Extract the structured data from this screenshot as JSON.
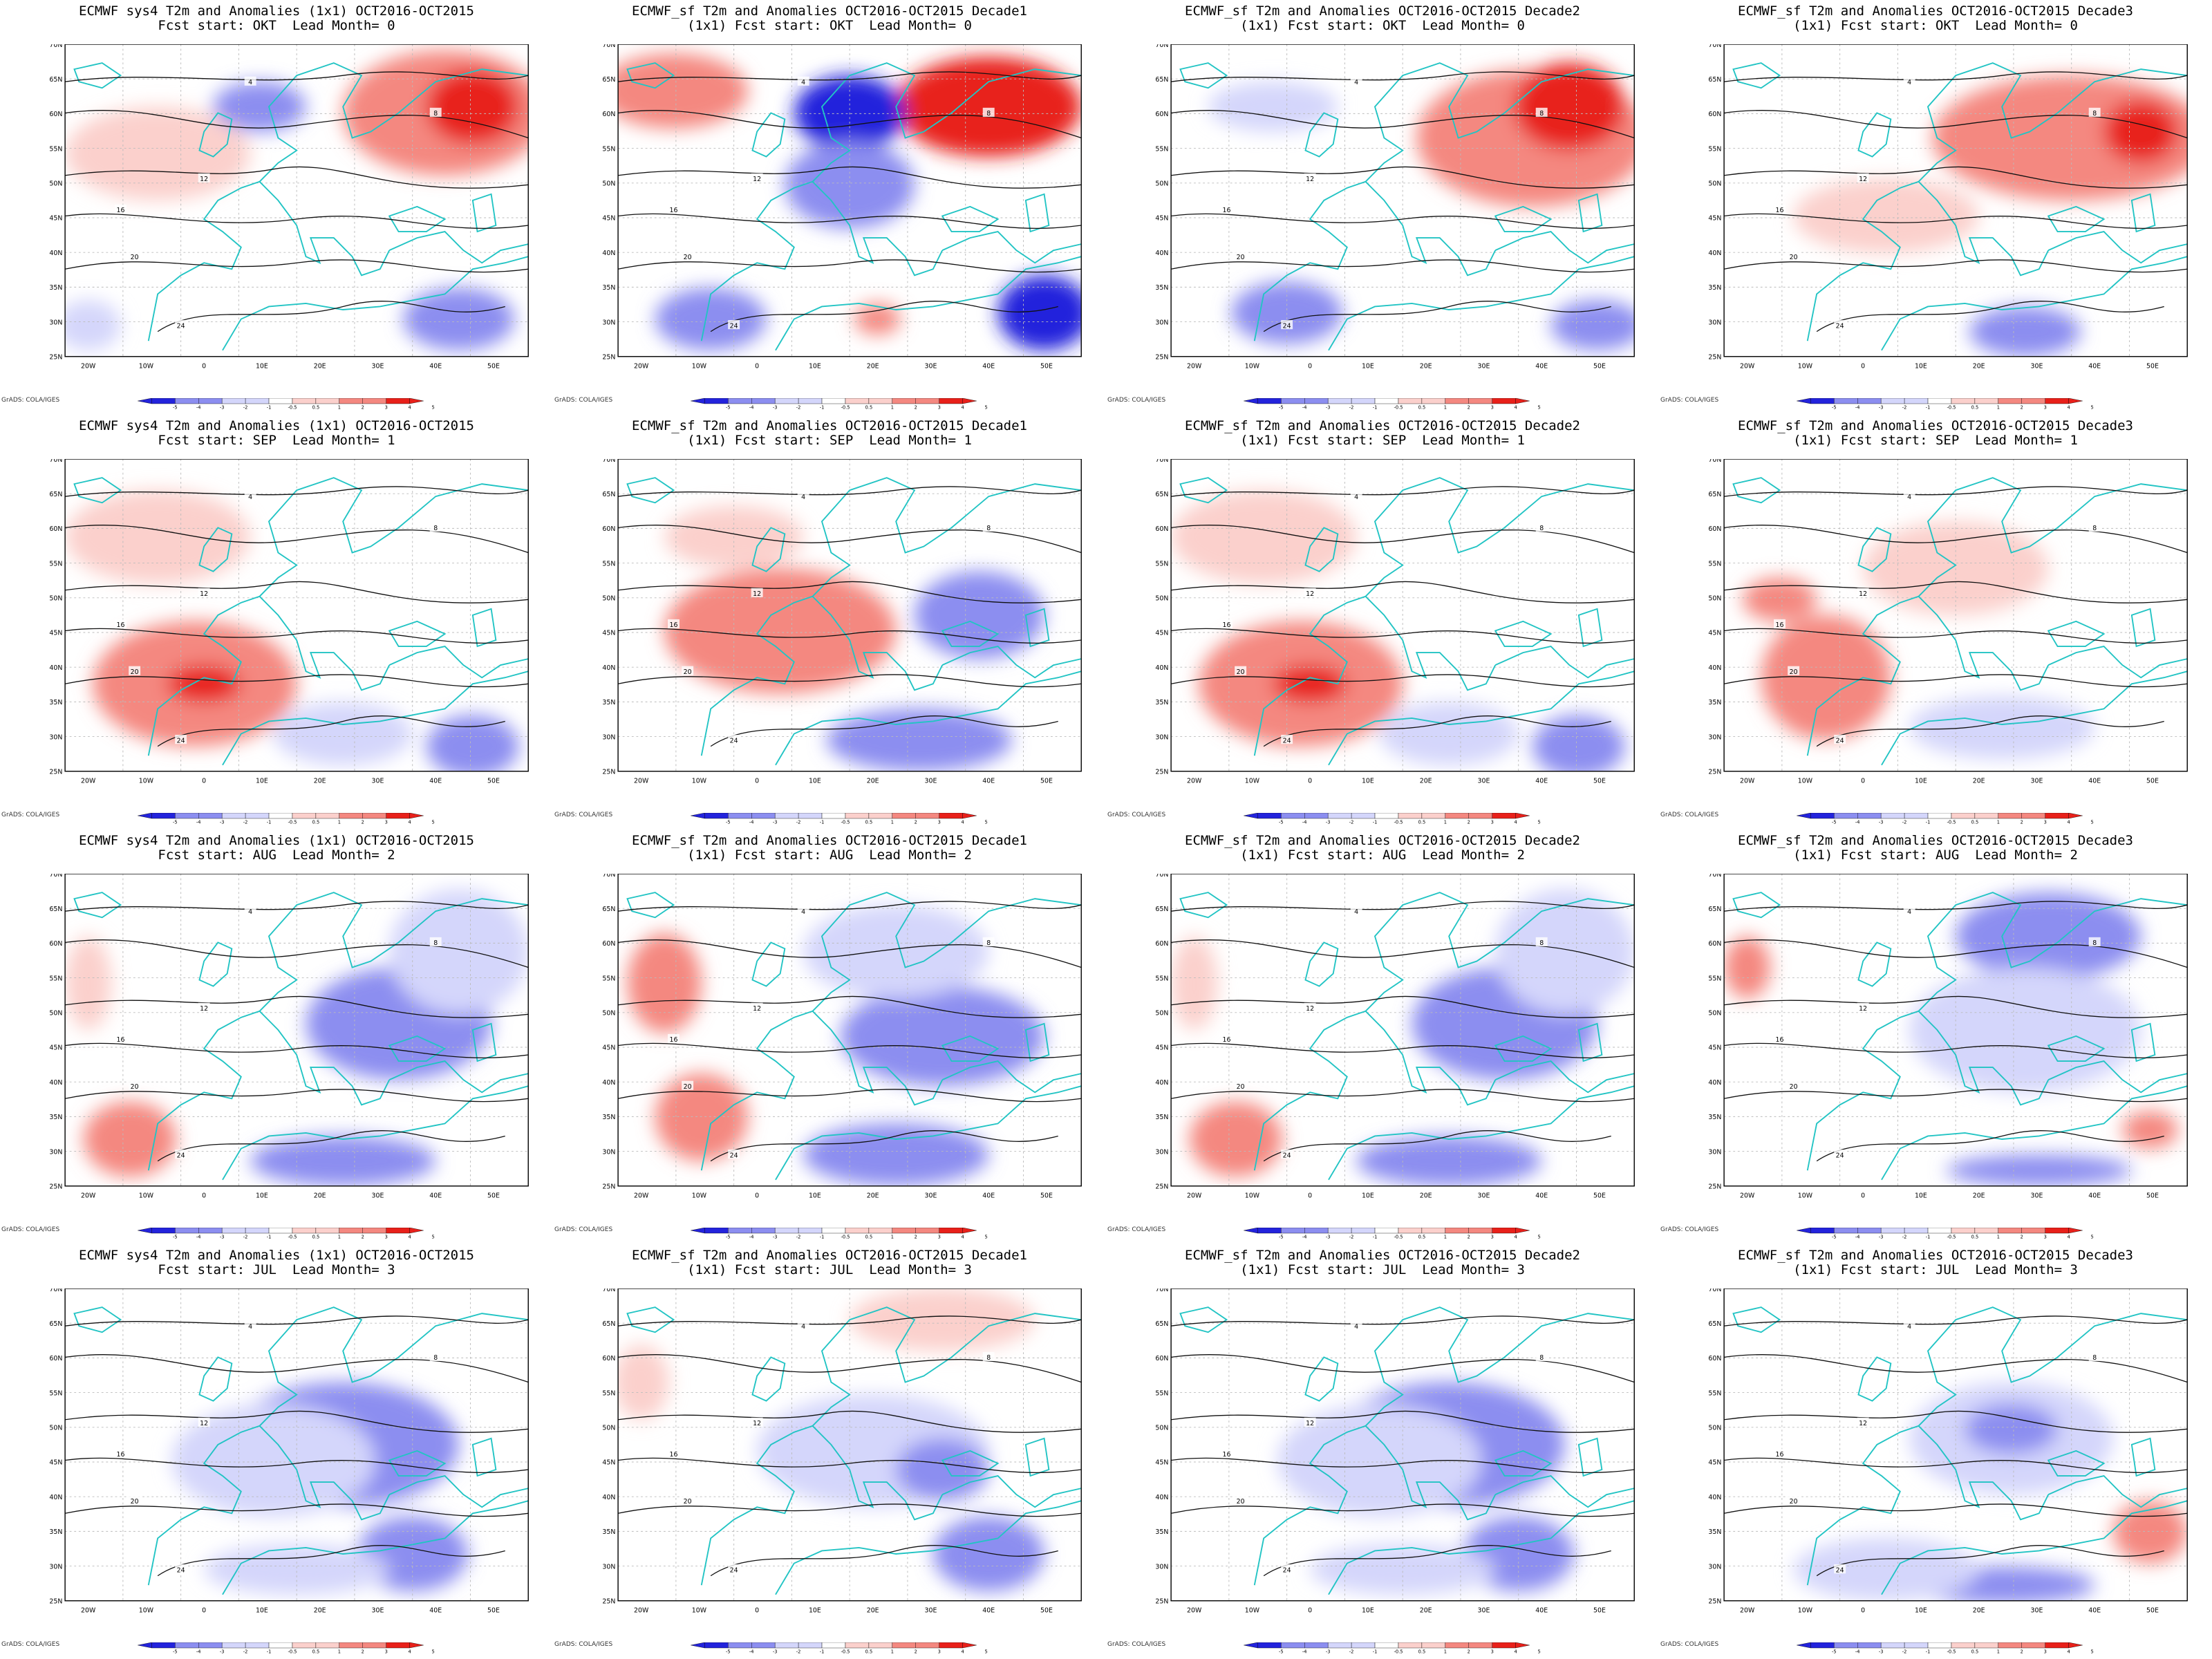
{
  "figure": {
    "colorbar_ticks": [
      "-5",
      "-4",
      "-3",
      "-2",
      "-1",
      "-0.5",
      "0.5",
      "1",
      "2",
      "3",
      "4",
      "5"
    ],
    "credit": "GrADS: COLA/IGES",
    "lon_labels": [
      "20W",
      "10W",
      "0",
      "10E",
      "20E",
      "30E",
      "40E",
      "50E"
    ],
    "lat_labels": [
      "70N",
      "65N",
      "60N",
      "55N",
      "50N",
      "45N",
      "40N",
      "35N",
      "30N",
      "25N"
    ],
    "contour_labels": [
      "4",
      "8",
      "12",
      "16",
      "20",
      "24"
    ],
    "colors": {
      "coast": "#22c4c4",
      "contour": "#111111",
      "warm_strong": "#e8201a",
      "warm_mid": "#f48880",
      "warm_light": "#fbd0cc",
      "cold_light": "#d4d6fb",
      "cold_mid": "#8c8ef0",
      "cold_strong": "#2323dc"
    }
  },
  "panels": [
    {
      "title_lines": [
        "ECMWF sys4 T2m and Anomalies (1x1) OCT2016-OCT2015",
        "Fcst start: OKT  Lead Month= 0"
      ],
      "pattern": "warm_east_cold_north"
    },
    {
      "title_lines": [
        "ECMWF_sf T2m and Anomalies OCT2016-OCT2015 Decade1",
        "(1x1) Fcst start: OKT  Lead Month= 0"
      ],
      "pattern": "strong_dipole"
    },
    {
      "title_lines": [
        "ECMWF_sf T2m and Anomalies OCT2016-OCT2015 Decade2",
        "(1x1) Fcst start: OKT  Lead Month= 0"
      ],
      "pattern": "warm_east"
    },
    {
      "title_lines": [
        "ECMWF_sf T2m and Anomalies OCT2016-OCT2015 Decade3",
        "(1x1) Fcst start: OKT  Lead Month= 0"
      ],
      "pattern": "warm_east_light"
    },
    {
      "title_lines": [
        "ECMWF sys4 T2m and Anomalies (1x1) OCT2016-OCT2015",
        "Fcst start: SEP  Lead Month= 1"
      ],
      "pattern": "warm_west"
    },
    {
      "title_lines": [
        "ECMWF_sf T2m and Anomalies OCT2016-OCT2015 Decade1",
        "(1x1) Fcst start: SEP  Lead Month= 1"
      ],
      "pattern": "warm_center_cold_east"
    },
    {
      "title_lines": [
        "ECMWF_sf T2m and Anomalies OCT2016-OCT2015 Decade2",
        "(1x1) Fcst start: SEP  Lead Month= 1"
      ],
      "pattern": "warm_west"
    },
    {
      "title_lines": [
        "ECMWF_sf T2m and Anomalies OCT2016-OCT2015 Decade3",
        "(1x1) Fcst start: SEP  Lead Month= 1"
      ],
      "pattern": "warm_weak"
    },
    {
      "title_lines": [
        "ECMWF sys4 T2m and Anomalies (1x1) OCT2016-OCT2015",
        "Fcst start: AUG  Lead Month= 2"
      ],
      "pattern": "cold_east_warm_sw"
    },
    {
      "title_lines": [
        "ECMWF_sf T2m and Anomalies OCT2016-OCT2015 Decade1",
        "(1x1) Fcst start: AUG  Lead Month= 2"
      ],
      "pattern": "cold_east_warm_west"
    },
    {
      "title_lines": [
        "ECMWF_sf T2m and Anomalies OCT2016-OCT2015 Decade2",
        "(1x1) Fcst start: AUG  Lead Month= 2"
      ],
      "pattern": "cold_east_warm_sw"
    },
    {
      "title_lines": [
        "ECMWF_sf T2m and Anomalies OCT2016-OCT2015 Decade3",
        "(1x1) Fcst start: AUG  Lead Month= 2"
      ],
      "pattern": "cold_north"
    },
    {
      "title_lines": [
        "ECMWF sys4 T2m and Anomalies (1x1) OCT2016-OCT2015",
        "Fcst start: JUL  Lead Month= 3"
      ],
      "pattern": "cold_center"
    },
    {
      "title_lines": [
        "ECMWF_sf T2m and Anomalies OCT2016-OCT2015 Decade1",
        "(1x1) Fcst start: JUL  Lead Month= 3"
      ],
      "pattern": "cold_center_warm_north"
    },
    {
      "title_lines": [
        "ECMWF_sf T2m and Anomalies OCT2016-OCT2015 Decade2",
        "(1x1) Fcst start: JUL  Lead Month= 3"
      ],
      "pattern": "cold_center"
    },
    {
      "title_lines": [
        "ECMWF_sf T2m and Anomalies OCT2016-OCT2015 Decade3",
        "(1x1) Fcst start: JUL  Lead Month= 3"
      ],
      "pattern": "cold_center_warm_se"
    }
  ]
}
